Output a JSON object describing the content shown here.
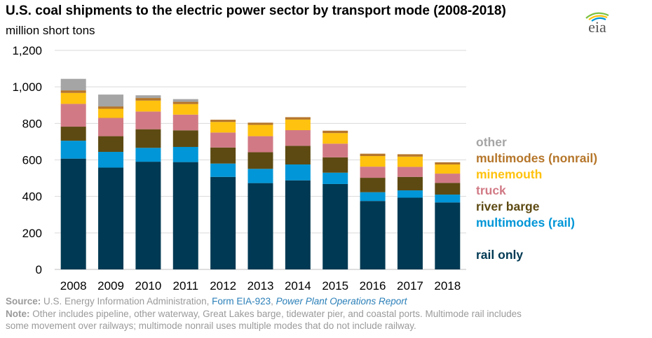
{
  "title": "U.S. coal shipments to the electric power sector by transport mode (2008-2018)",
  "subtitle": "million short tons",
  "logo_text": "eia",
  "colors": {
    "rail_only": "#003953",
    "multimodes_rail": "#0096d7",
    "river_barge": "#5d4a12",
    "truck": "#d17a85",
    "minemouth": "#ffc20e",
    "multimodes_nonrail": "#b5762a",
    "other": "#a5a5a5",
    "grid": "#d9d9d9"
  },
  "chart_data": {
    "type": "bar",
    "stacked": true,
    "categories": [
      "2008",
      "2009",
      "2010",
      "2011",
      "2012",
      "2013",
      "2014",
      "2015",
      "2016",
      "2017",
      "2018"
    ],
    "ylim": [
      0,
      1200
    ],
    "yticks": [
      "0",
      "200",
      "400",
      "600",
      "800",
      "1,000",
      "1,200"
    ],
    "ytick_values": [
      0,
      200,
      400,
      600,
      800,
      1000,
      1200
    ],
    "grid": true,
    "legend_position": "right",
    "series": [
      {
        "name": "rail only",
        "key": "rail_only",
        "values": [
          607,
          558,
          590,
          588,
          507,
          473,
          488,
          468,
          375,
          393,
          367
        ]
      },
      {
        "name": "multimodes (rail)",
        "key": "multimodes_rail",
        "values": [
          98,
          86,
          76,
          83,
          73,
          78,
          87,
          62,
          48,
          40,
          43
        ]
      },
      {
        "name": "river barge",
        "key": "river_barge",
        "values": [
          77,
          86,
          102,
          91,
          88,
          91,
          102,
          84,
          79,
          74,
          64
        ]
      },
      {
        "name": "truck",
        "key": "truck",
        "values": [
          125,
          100,
          97,
          86,
          82,
          88,
          86,
          75,
          61,
          55,
          51
        ]
      },
      {
        "name": "minemouth",
        "key": "minemouth",
        "values": [
          60,
          50,
          60,
          58,
          58,
          62,
          58,
          58,
          58,
          56,
          50
        ]
      },
      {
        "name": "multimodes (nonrail)",
        "key": "multimodes_nonrail",
        "values": [
          14,
          13,
          14,
          12,
          12,
          12,
          13,
          13,
          13,
          13,
          12
        ]
      },
      {
        "name": "other",
        "key": "other",
        "values": [
          63,
          65,
          15,
          15,
          0,
          0,
          0,
          0,
          0,
          0,
          0
        ]
      }
    ]
  },
  "legend": [
    {
      "label": "other",
      "key": "other"
    },
    {
      "label": "multimodes (nonrail)",
      "key": "multimodes_nonrail"
    },
    {
      "label": "minemouth",
      "key": "minemouth"
    },
    {
      "label": "truck",
      "key": "truck"
    },
    {
      "label": "river barge",
      "key": "river_barge"
    },
    {
      "label": "multimodes (rail)",
      "key": "multimodes_rail"
    },
    {
      "label": "rail only",
      "key": "rail_only"
    }
  ],
  "footer": {
    "source_label": "Source:",
    "source_text": " U.S. Energy Information Administration, ",
    "source_link1": "Form EIA-923",
    "source_sep": ", ",
    "source_link2": "Power Plant Operations Report",
    "note_label": "Note:",
    "note_text": " Other includes pipeline, other waterway, Great Lakes barge, tidewater pier, and coastal ports. Multimode rail includes",
    "note_text2": "some movement over railways; multimode nonrail uses multiple modes that do not include railway."
  }
}
